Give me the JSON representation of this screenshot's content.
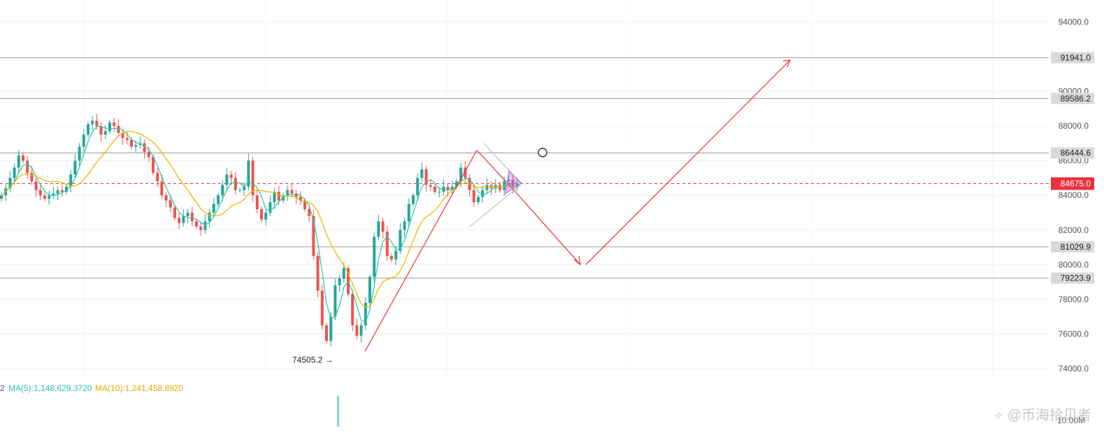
{
  "chart_data": {
    "type": "candlestick",
    "ylim": [
      73000,
      95000
    ],
    "grid": true,
    "y_ticks": [
      94000,
      90000,
      88000,
      86000,
      84000,
      82000,
      80000,
      78000,
      76000,
      74000
    ],
    "y_tick_labels": [
      "94000.0",
      "90000.0",
      "88000.0",
      "86000.0",
      "84000.0",
      "82000.0",
      "80000.0",
      "78000.0",
      "76000.0",
      "74000.0"
    ],
    "levels": [
      {
        "value": 91941.0,
        "label": "91941.0"
      },
      {
        "value": 89586.2,
        "label": "89586.2"
      },
      {
        "value": 86444.6,
        "label": "86444.6"
      },
      {
        "value": 81029.9,
        "label": "81029.9"
      },
      {
        "value": 79223.9,
        "label": "79223.9"
      }
    ],
    "current_price": {
      "value": 84675.0,
      "label": "84675.0"
    },
    "annotations": [
      {
        "text": "74505.2 →",
        "value": 74505.2
      }
    ],
    "close_series": [
      84000,
      84400,
      85000,
      85600,
      86300,
      86000,
      85300,
      84800,
      84300,
      84000,
      83800,
      84000,
      84100,
      84300,
      84200,
      84500,
      85200,
      86000,
      86800,
      87500,
      88100,
      88300,
      88000,
      87500,
      87700,
      88200,
      88000,
      87600,
      87300,
      87200,
      86800,
      86900,
      87000,
      86500,
      86200,
      85300,
      84800,
      84000,
      83700,
      83300,
      82700,
      82400,
      82800,
      83000,
      82500,
      82200,
      82000,
      82500,
      83000,
      83500,
      84000,
      84600,
      85200,
      85000,
      84300,
      84300,
      84500,
      86000,
      84000,
      83200,
      82600,
      83000,
      83600,
      84200,
      83700,
      84000,
      84300,
      84100,
      83900,
      83700,
      83200,
      82800,
      80500,
      78500,
      76500,
      75600,
      77000,
      78800,
      79200,
      79800,
      78300,
      76500,
      75900,
      76500,
      77800,
      79300,
      81600,
      82500,
      81900,
      80500,
      80300,
      80800,
      82000,
      82500,
      83500,
      84000,
      85000,
      85500,
      84600,
      84500,
      84200,
      84200,
      84500,
      84300,
      84500,
      84800,
      85600,
      85000,
      84300,
      83600,
      83900,
      84300,
      84600,
      84400,
      84600,
      84300,
      84800,
      84900,
      84500,
      84675
    ],
    "volume_labels": {
      "prefix": "2",
      "ma5": "MA(5):1,148,629.3720",
      "ma10": "MA(10):1,241,458.8920",
      "axis_label": "10.00M"
    },
    "colors": {
      "up": "#26a69a",
      "down": "#ef5350",
      "ma_fast": "#26c6a6",
      "ma_slow": "#f5b400",
      "projection": "#e8323c",
      "triangle": "#b06ae0"
    }
  },
  "watermark": {
    "text": "@币海拾贝者",
    "icon": "diamond-icon"
  }
}
